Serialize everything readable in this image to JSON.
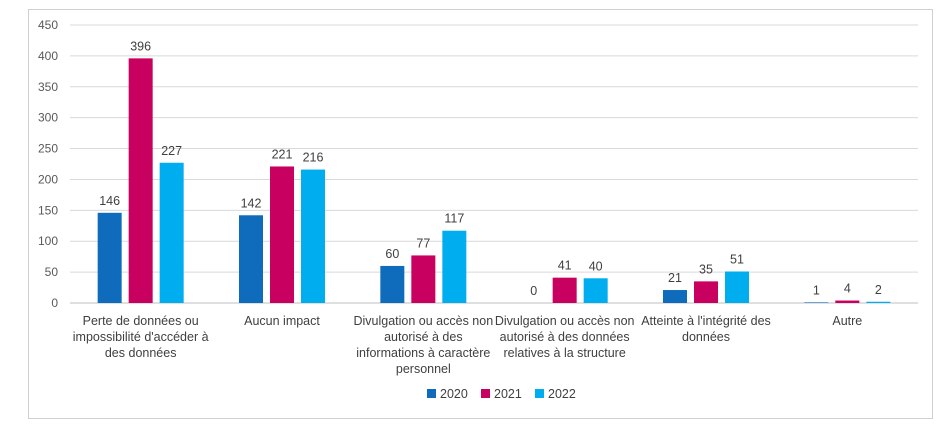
{
  "chart_data": {
    "type": "bar",
    "categories": [
      "Perte de données ou impossibilité d'accéder à des données",
      "Aucun impact",
      "Divulgation ou accès non autorisé à des informations à caractère personnel",
      "Divulgation ou accès non autorisé à des données relatives à la structure",
      "Atteinte à l'intégrité des données",
      "Autre"
    ],
    "category_lines": [
      [
        "Perte de données ou",
        "impossibilité d'accéder à",
        "des données"
      ],
      [
        "Aucun impact"
      ],
      [
        "Divulgation ou accès non",
        "autorisé à des",
        "informations à caractère",
        "personnel"
      ],
      [
        "Divulgation ou accès non",
        "autorisé à des données",
        "relatives à la structure"
      ],
      [
        "Atteinte à l'intégrité des",
        "données"
      ],
      [
        "Autre"
      ]
    ],
    "series": [
      {
        "name": "2020",
        "color": "#0F6CBD",
        "values": [
          146,
          142,
          60,
          0,
          21,
          1
        ]
      },
      {
        "name": "2021",
        "color": "#C8005F",
        "values": [
          396,
          221,
          77,
          41,
          35,
          4
        ]
      },
      {
        "name": "2022",
        "color": "#00AEEF",
        "values": [
          227,
          216,
          117,
          40,
          51,
          2
        ]
      }
    ],
    "ylim": [
      0,
      450
    ],
    "yticks": [
      0,
      50,
      100,
      150,
      200,
      250,
      300,
      350,
      400,
      450
    ],
    "grid": true,
    "legend_position": "bottom",
    "data_labels": true
  }
}
